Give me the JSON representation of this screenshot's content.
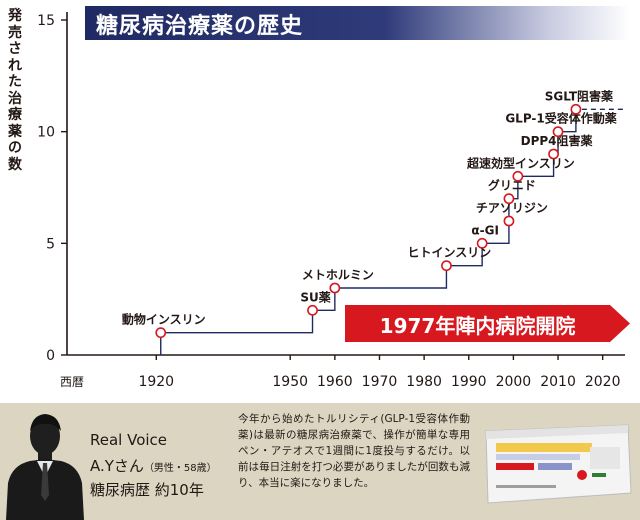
{
  "chart_data": {
    "type": "line",
    "title": "糖尿病治療薬の歴史",
    "xlabel": "西暦",
    "ylabel": "発売された治療薬の数",
    "xlim": [
      1900,
      2025
    ],
    "ylim": [
      0,
      15
    ],
    "x_ticks": [
      1920,
      1950,
      1960,
      1970,
      1980,
      1990,
      2000,
      2010,
      2020
    ],
    "y_ticks": [
      0,
      5,
      10,
      15
    ],
    "grid": false,
    "series": [
      {
        "points": [
          {
            "x": 1921,
            "y": 1,
            "label": "動物インスリン"
          },
          {
            "x": 1955,
            "y": 2,
            "label": "SU薬"
          },
          {
            "x": 1960,
            "y": 3,
            "label": "メトホルミン"
          },
          {
            "x": 1985,
            "y": 4,
            "label": "ヒトインスリン"
          },
          {
            "x": 1993,
            "y": 5,
            "label": "α-GI"
          },
          {
            "x": 1999,
            "y": 6,
            "label": "チアゾリジン"
          },
          {
            "x": 1999,
            "y": 7,
            "label": "グリニド"
          },
          {
            "x": 2001,
            "y": 8,
            "label": "超速効型インスリン"
          },
          {
            "x": 2009,
            "y": 9,
            "label": "DPP4阻害薬"
          },
          {
            "x": 2010,
            "y": 10,
            "label": "GLP-1受容体作動薬"
          },
          {
            "x": 2014,
            "y": 11,
            "label": "SGLT阻害薬"
          }
        ],
        "end_x": 2025
      }
    ],
    "annotations": [
      {
        "text": "1977年陣内病院開院",
        "color": "#d7191f"
      }
    ]
  },
  "real_voice": {
    "title": "Real Voice",
    "name": "A.Yさん",
    "profile": "（男性・58歳）",
    "history": "糖尿病歴 約10年",
    "quote": "今年から始めたトルリシティ(GLP-1受容体作動薬)は最新の糖尿病治療薬で、操作が簡単な専用ペン・アテオスで1週間に1度投与するだけ。以前は毎日注射を打つ必要がありましたが回数も減り、本当に楽になりました。"
  },
  "colors": {
    "title_bar": "#1f2a63",
    "line": "#1f2a63",
    "marker": "#d7191f",
    "banner": "#d7191f",
    "voice_bg": "#dcd5c1"
  }
}
